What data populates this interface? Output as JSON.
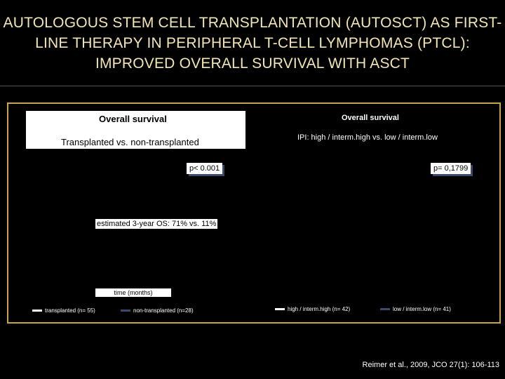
{
  "title": {
    "line1": "AUTOLOGOUS STEM CELL TRANSPLANTATION (AUTOSCT) AS FIRST-",
    "line2": "LINE THERAPY IN PERIPHERAL T-CELL LYMPHOMAS (PTCL):",
    "line3": "IMPROVED OVERALL SURVIVAL WITH ASCT"
  },
  "left_panel": {
    "title": "Overall survival",
    "comparison": "Transplanted vs. non-transplanted",
    "p_value": "p< 0.001",
    "estimate": "estimated 3-year OS: 71% vs. 11%",
    "x_axis_label": "time (months)",
    "legend": [
      {
        "label": "transplanted (n= 55)",
        "color": "#ffffff"
      },
      {
        "label": "non-transplanted (n=28)",
        "color": "#3b4a6b"
      }
    ]
  },
  "right_panel": {
    "title": "Overall survival",
    "comparison": "IPI: high / interm.high vs. low / interm.low",
    "p_value": "p= 0,1799",
    "legend": [
      {
        "label": "high / interm.high (n= 42)",
        "color": "#ffffff"
      },
      {
        "label": "low / interm.low (n= 41)",
        "color": "#3b4a6b"
      }
    ]
  },
  "citation": "Reimer et al., 2009, JCO 27(1): 106-113"
}
